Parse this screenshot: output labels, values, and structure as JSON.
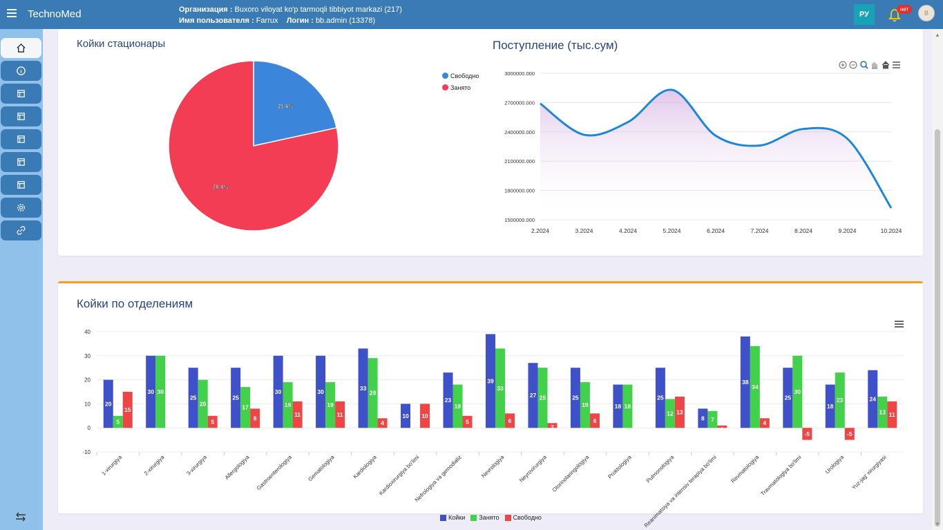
{
  "app": {
    "brand": "TechnoMed"
  },
  "header": {
    "org_label": "Организация :",
    "org_value": "Buxoro viloyat ko'p tarmoqli tibbiyot markazi (217)",
    "user_label": "Имя пользователя :",
    "user_value": "Farrux",
    "login_label": "Логин :",
    "login_value": "bb.admin (13378)",
    "lang": "РУ",
    "notif_badge": "нет",
    "avatar_initial": "B"
  },
  "sidebar": {
    "items": [
      {
        "icon": "home-icon"
      },
      {
        "icon": "info-icon"
      },
      {
        "icon": "table-icon"
      },
      {
        "icon": "table-icon"
      },
      {
        "icon": "table-icon"
      },
      {
        "icon": "table-icon"
      },
      {
        "icon": "table-icon"
      },
      {
        "icon": "gear-icon"
      },
      {
        "icon": "link-icon"
      }
    ],
    "bottom_icon": "swap-arrows-icon"
  },
  "beds_panel": {
    "title": "Койки стационары",
    "legend": [
      "Свободно",
      "Занято"
    ]
  },
  "income_panel": {
    "title": "Поступление (тыс.сум)"
  },
  "dept_panel": {
    "title": "Койки по отделениям",
    "legend": [
      "Койки",
      "Занято",
      "Свободно"
    ]
  },
  "colors": {
    "free": "#3b86db",
    "busy": "#f33d55",
    "line": "#1b88d6",
    "beds": "#3f51c8",
    "taken": "#43d04b",
    "freebar": "#ee4646"
  },
  "chart_data": [
    {
      "type": "pie",
      "title": "Койки стационары",
      "labels": [
        "Свободно",
        "Занято"
      ],
      "values": [
        21.6,
        78.4
      ],
      "value_labels": [
        "21.6%",
        "78.4%"
      ]
    },
    {
      "type": "area",
      "title": "Поступление (тыс.сум)",
      "x": [
        "2.2024",
        "3.2024",
        "4.2024",
        "5.2024",
        "6.2024",
        "7.2024",
        "8.2024",
        "9.2024",
        "10.2024"
      ],
      "values": [
        2690000,
        2370000,
        2500000,
        2830000,
        2360000,
        2260000,
        2430000,
        2330000,
        1620000
      ],
      "ylim": [
        1500000,
        3000000
      ],
      "yticks": [
        "1500000.000",
        "1800000.000",
        "2100000.000",
        "2400000.000",
        "2700000.000",
        "3000000.000"
      ]
    },
    {
      "type": "bar",
      "title": "Койки по отделениям",
      "categories": [
        "1-xirurgiya",
        "2-xirurgiya",
        "3-xirurgiya",
        "Allergologiya",
        "Gastroenterologiya",
        "Gematologiya",
        "Kardiologiya",
        "Kardioxirurgiya bo'limi",
        "Nefrologiya va gemodializ",
        "Nevrologiya",
        "Neyroxirurgiya",
        "Otorinolaringologiya",
        "Proktologiya",
        "Pulmonologiya",
        "Reanimatsiya va intensiv terapiya bo'limi",
        "Revmatologiya",
        "Travmatologiya bo'limi",
        "Urologiya",
        "Yuz-jag' xirurgiyasi"
      ],
      "series": [
        {
          "name": "Койки",
          "values": [
            20,
            30,
            25,
            25,
            30,
            30,
            33,
            10,
            23,
            39,
            27,
            25,
            18,
            25,
            8,
            38,
            25,
            18,
            24
          ]
        },
        {
          "name": "Занято",
          "values": [
            5,
            30,
            20,
            17,
            19,
            19,
            29,
            0,
            18,
            33,
            25,
            19,
            18,
            12,
            7,
            34,
            30,
            23,
            13
          ]
        },
        {
          "name": "Свободно",
          "values": [
            15,
            0,
            5,
            8,
            11,
            11,
            4,
            10,
            5,
            6,
            2,
            6,
            0,
            13,
            1,
            4,
            -5,
            -5,
            11
          ]
        }
      ],
      "ylim": [
        -10,
        40
      ],
      "yticks": [
        -10,
        0,
        10,
        20,
        30,
        40
      ]
    }
  ]
}
